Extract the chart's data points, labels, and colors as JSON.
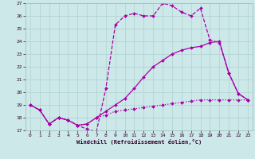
{
  "xlabel": "Windchill (Refroidissement éolien,°C)",
  "bg_color": "#cce8e8",
  "grid_color": "#b0d0d0",
  "line_color": "#aa00aa",
  "xlim": [
    -0.5,
    23.5
  ],
  "ylim": [
    17,
    27
  ],
  "xticks": [
    0,
    1,
    2,
    3,
    4,
    5,
    6,
    7,
    8,
    9,
    10,
    11,
    12,
    13,
    14,
    15,
    16,
    17,
    18,
    19,
    20,
    21,
    22,
    23
  ],
  "yticks": [
    17,
    18,
    19,
    20,
    21,
    22,
    23,
    24,
    25,
    26,
    27
  ],
  "line1_x": [
    0,
    1,
    2,
    3,
    4,
    5,
    6,
    7,
    8,
    9,
    10,
    11,
    12,
    13,
    14,
    15,
    16,
    17,
    18,
    19,
    20,
    21,
    22,
    23
  ],
  "line1_y": [
    19.0,
    18.6,
    17.5,
    18.0,
    17.8,
    17.4,
    17.1,
    16.9,
    20.3,
    25.3,
    26.0,
    26.2,
    26.0,
    26.0,
    27.0,
    26.8,
    26.3,
    26.0,
    26.6,
    24.1,
    23.9,
    21.5,
    19.9,
    19.4
  ],
  "line2_x": [
    0,
    1,
    2,
    3,
    4,
    5,
    6,
    7,
    8,
    9,
    10,
    11,
    12,
    13,
    14,
    15,
    16,
    17,
    18,
    19,
    20,
    21,
    22,
    23
  ],
  "line2_y": [
    19.0,
    18.6,
    17.5,
    18.0,
    17.8,
    17.4,
    17.5,
    18.0,
    18.5,
    19.0,
    19.5,
    20.3,
    21.2,
    22.0,
    22.5,
    23.0,
    23.3,
    23.5,
    23.6,
    23.9,
    24.0,
    21.5,
    19.9,
    19.4
  ],
  "line3_x": [
    0,
    1,
    2,
    3,
    4,
    5,
    6,
    7,
    8,
    9,
    10,
    11,
    12,
    13,
    14,
    15,
    16,
    17,
    18,
    19,
    20,
    21,
    22,
    23
  ],
  "line3_y": [
    19.0,
    18.6,
    17.5,
    18.0,
    17.8,
    17.4,
    17.5,
    18.0,
    18.2,
    18.5,
    18.6,
    18.7,
    18.8,
    18.9,
    19.0,
    19.1,
    19.2,
    19.3,
    19.4,
    19.4,
    19.4,
    19.4,
    19.4,
    19.4
  ]
}
